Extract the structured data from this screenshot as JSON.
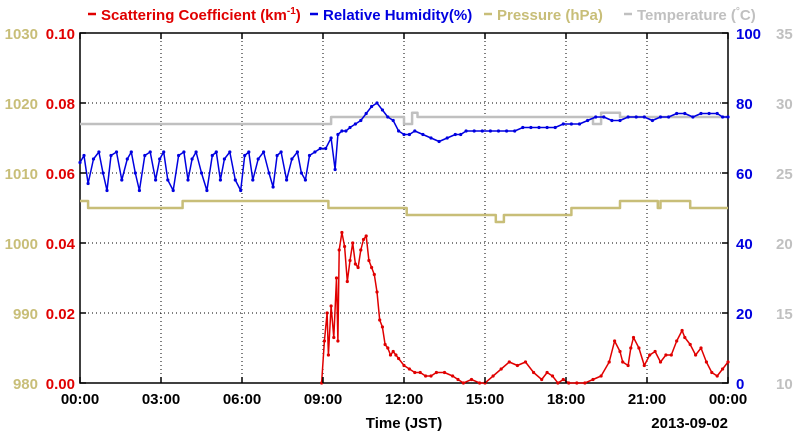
{
  "chart_data": {
    "type": "line",
    "xlabel": "Time (JST)",
    "date_label": "2013-09-02",
    "x_ticks": [
      "00:00",
      "03:00",
      "06:00",
      "09:00",
      "12:00",
      "15:00",
      "18:00",
      "21:00",
      "00:00"
    ],
    "xlim": [
      0,
      24
    ],
    "grid": true,
    "legend_position": "top",
    "axes": {
      "pressure": {
        "color": "#c8be78",
        "lim": [
          980,
          1030
        ],
        "ticks": [
          "980",
          "990",
          "1000",
          "1010",
          "1020",
          "1030"
        ],
        "side": "left-outer"
      },
      "scattering": {
        "color": "#e00000",
        "lim": [
          0.0,
          0.1
        ],
        "ticks": [
          "0.00",
          "0.02",
          "0.04",
          "0.06",
          "0.08",
          "0.10"
        ],
        "side": "left-inner"
      },
      "humidity": {
        "color": "#0000e0",
        "lim": [
          0,
          100
        ],
        "ticks": [
          "0",
          "20",
          "40",
          "60",
          "80",
          "100"
        ],
        "side": "right-inner"
      },
      "temperature": {
        "color": "#c0c0c0",
        "lim": [
          10,
          35
        ],
        "ticks": [
          "10",
          "15",
          "20",
          "25",
          "30",
          "35"
        ],
        "side": "right-outer"
      }
    },
    "series": [
      {
        "name": "Scattering Coefficient (km⁻¹)",
        "legend_main": "Scattering Coefficient (km",
        "legend_sup": "-1",
        "legend_tail": ")",
        "axis": "scattering",
        "color": "#e00000",
        "x": [
          8.95,
          9.05,
          9.15,
          9.2,
          9.3,
          9.4,
          9.5,
          9.55,
          9.6,
          9.7,
          9.8,
          9.9,
          10.0,
          10.1,
          10.2,
          10.3,
          10.4,
          10.5,
          10.6,
          10.7,
          10.8,
          10.9,
          11.0,
          11.1,
          11.2,
          11.3,
          11.4,
          11.5,
          11.6,
          11.7,
          11.8,
          12.0,
          12.2,
          12.4,
          12.6,
          12.8,
          13.0,
          13.2,
          13.5,
          13.8,
          14.0,
          14.2,
          14.5,
          14.8,
          15.0,
          15.3,
          15.6,
          15.9,
          16.2,
          16.5,
          16.8,
          17.1,
          17.3,
          17.5,
          17.7,
          17.9,
          18.1,
          18.4,
          18.7,
          19.0,
          19.3,
          19.6,
          19.8,
          20.0,
          20.1,
          20.3,
          20.4,
          20.5,
          20.7,
          20.9,
          21.1,
          21.3,
          21.5,
          21.7,
          21.9,
          22.1,
          22.3,
          22.4,
          22.6,
          22.8,
          23.0,
          23.2,
          23.4,
          23.6,
          23.8,
          24.0
        ],
        "values": [
          0.0,
          0.012,
          0.02,
          0.008,
          0.022,
          0.013,
          0.03,
          0.012,
          0.038,
          0.043,
          0.039,
          0.029,
          0.035,
          0.04,
          0.034,
          0.033,
          0.038,
          0.041,
          0.042,
          0.035,
          0.033,
          0.031,
          0.026,
          0.018,
          0.016,
          0.011,
          0.01,
          0.008,
          0.009,
          0.008,
          0.007,
          0.005,
          0.004,
          0.003,
          0.003,
          0.002,
          0.002,
          0.003,
          0.003,
          0.002,
          0.001,
          0.0,
          0.001,
          0.0,
          0.0,
          0.002,
          0.004,
          0.006,
          0.005,
          0.006,
          0.003,
          0.001,
          0.003,
          0.002,
          0.0,
          0.001,
          0.0,
          0.0,
          0.0,
          0.001,
          0.002,
          0.006,
          0.012,
          0.009,
          0.006,
          0.005,
          0.01,
          0.013,
          0.01,
          0.005,
          0.008,
          0.009,
          0.006,
          0.008,
          0.008,
          0.012,
          0.015,
          0.013,
          0.011,
          0.008,
          0.01,
          0.006,
          0.003,
          0.002,
          0.004,
          0.006
        ]
      },
      {
        "name": "Relative Humidity(%)",
        "axis": "humidity",
        "color": "#0000e0",
        "x": [
          0.0,
          0.15,
          0.3,
          0.5,
          0.7,
          0.85,
          1.0,
          1.15,
          1.35,
          1.55,
          1.75,
          1.9,
          2.05,
          2.2,
          2.4,
          2.6,
          2.8,
          2.95,
          3.1,
          3.25,
          3.45,
          3.65,
          3.85,
          4.0,
          4.15,
          4.3,
          4.5,
          4.7,
          4.9,
          5.05,
          5.2,
          5.35,
          5.55,
          5.75,
          5.95,
          6.1,
          6.25,
          6.4,
          6.6,
          6.8,
          7.0,
          7.15,
          7.3,
          7.45,
          7.65,
          7.85,
          8.05,
          8.2,
          8.35,
          8.5,
          8.7,
          8.9,
          9.1,
          9.3,
          9.45,
          9.55,
          9.7,
          9.85,
          10.0,
          10.2,
          10.4,
          10.6,
          10.8,
          11.0,
          11.2,
          11.4,
          11.6,
          11.8,
          12.0,
          12.2,
          12.4,
          12.7,
          13.0,
          13.3,
          13.6,
          13.9,
          14.1,
          14.3,
          14.6,
          14.9,
          15.2,
          15.5,
          15.8,
          16.1,
          16.4,
          16.7,
          17.0,
          17.3,
          17.6,
          17.9,
          18.2,
          18.5,
          18.8,
          19.1,
          19.4,
          19.7,
          20.0,
          20.3,
          20.6,
          20.9,
          21.2,
          21.5,
          21.8,
          22.1,
          22.4,
          22.7,
          23.0,
          23.3,
          23.6,
          23.8,
          24.0
        ],
        "values": [
          63,
          65,
          57,
          64,
          66,
          60,
          55,
          65,
          66,
          58,
          64,
          66,
          60,
          55,
          65,
          66,
          58,
          64,
          66,
          58,
          55,
          65,
          66,
          58,
          64,
          66,
          60,
          55,
          65,
          66,
          58,
          64,
          66,
          58,
          55,
          65,
          66,
          58,
          64,
          66,
          60,
          56,
          65,
          66,
          58,
          64,
          66,
          60,
          58,
          65,
          66,
          67,
          67,
          70,
          61,
          71,
          72,
          72,
          73,
          74,
          75,
          77,
          79,
          80,
          78,
          76,
          75,
          72,
          71,
          71,
          72,
          71,
          70,
          69,
          70,
          71,
          71,
          72,
          72,
          72,
          72,
          72,
          72,
          72,
          73,
          73,
          73,
          73,
          73,
          74,
          74,
          74,
          75,
          76,
          76,
          75,
          75,
          76,
          76,
          76,
          75,
          76,
          76,
          77,
          77,
          76,
          77,
          77,
          77,
          76,
          76
        ]
      },
      {
        "name": "Pressure (hPa)",
        "axis": "pressure",
        "color": "#c8be78",
        "x": [
          0.0,
          0.3,
          3.6,
          3.8,
          8.9,
          9.2,
          12.0,
          12.1,
          15.4,
          15.7,
          17.9,
          18.2,
          19.0,
          19.8,
          20.0,
          21.0,
          21.4,
          21.5,
          22.6,
          23.0,
          24.0
        ],
        "values": [
          1006,
          1005,
          1005,
          1006,
          1006,
          1005,
          1005,
          1004,
          1003,
          1004,
          1004,
          1005,
          1005,
          1005,
          1006,
          1006,
          1005,
          1006,
          1005,
          1005,
          1005
        ]
      },
      {
        "name": "Temperature (℃)",
        "legend_main": "Temperature (",
        "legend_sup": "°",
        "legend_tail": "C)",
        "axis": "temperature",
        "color": "#c0c0c0",
        "x": [
          0.0,
          9.0,
          9.3,
          11.5,
          12.0,
          12.3,
          12.5,
          15.0,
          18.5,
          19.0,
          19.3,
          20.0,
          22.0,
          24.0
        ],
        "values": [
          28.5,
          28.5,
          29.0,
          29.0,
          28.5,
          29.3,
          29.0,
          29.0,
          29.0,
          28.5,
          29.3,
          29.0,
          29.0,
          29.0
        ]
      }
    ]
  }
}
